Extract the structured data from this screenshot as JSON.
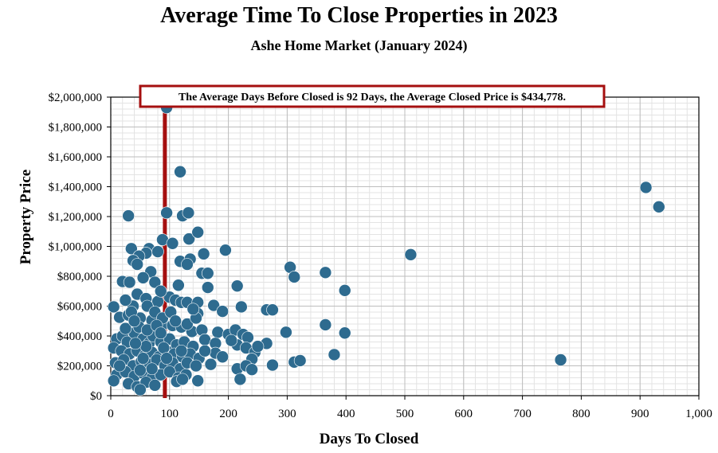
{
  "chart_data": {
    "type": "scatter",
    "title": "Average Time To Close Properties in 2023",
    "subtitle": "Ashe Home Market (January 2024)",
    "xlabel": "Days To Closed",
    "ylabel": "Property Price",
    "xlim": [
      0,
      1000
    ],
    "ylim": [
      0,
      2000000
    ],
    "x_ticks": [
      "0",
      "100",
      "200",
      "300",
      "400",
      "500",
      "600",
      "700",
      "800",
      "900",
      "1,000"
    ],
    "y_ticks": [
      "$0",
      "$200,000",
      "$400,000",
      "$600,000",
      "$800,000",
      "$1,000,000",
      "$1,200,000",
      "$1,400,000",
      "$1,600,000",
      "$1,800,000",
      "$2,000,000"
    ],
    "grid": true,
    "marker_color": "#2e6b8f",
    "average_line": {
      "x": 92,
      "color": "#a50f0f"
    },
    "annotation": "The Average Days Before Closed is 92 Days, the Average Closed Price is $434,778.",
    "points": [
      [
        95,
        1930000
      ],
      [
        118,
        1500000
      ],
      [
        910,
        1395000
      ],
      [
        932,
        1265000
      ],
      [
        30,
        1205000
      ],
      [
        95,
        1225000
      ],
      [
        122,
        1205000
      ],
      [
        132,
        1225000
      ],
      [
        88,
        1045000
      ],
      [
        105,
        1020000
      ],
      [
        133,
        1050000
      ],
      [
        148,
        1095000
      ],
      [
        195,
        975000
      ],
      [
        35,
        985000
      ],
      [
        65,
        985000
      ],
      [
        80,
        965000
      ],
      [
        60,
        955000
      ],
      [
        48,
        935000
      ],
      [
        38,
        905000
      ],
      [
        45,
        880000
      ],
      [
        118,
        900000
      ],
      [
        135,
        915000
      ],
      [
        158,
        950000
      ],
      [
        130,
        880000
      ],
      [
        155,
        820000
      ],
      [
        165,
        820000
      ],
      [
        305,
        860000
      ],
      [
        312,
        795000
      ],
      [
        365,
        825000
      ],
      [
        510,
        945000
      ],
      [
        20,
        765000
      ],
      [
        32,
        760000
      ],
      [
        68,
        830000
      ],
      [
        55,
        790000
      ],
      [
        75,
        760000
      ],
      [
        115,
        740000
      ],
      [
        165,
        725000
      ],
      [
        215,
        735000
      ],
      [
        398,
        705000
      ],
      [
        5,
        595000
      ],
      [
        38,
        600000
      ],
      [
        25,
        640000
      ],
      [
        45,
        680000
      ],
      [
        60,
        650000
      ],
      [
        80,
        630000
      ],
      [
        100,
        660000
      ],
      [
        110,
        640000
      ],
      [
        120,
        625000
      ],
      [
        130,
        625000
      ],
      [
        148,
        625000
      ],
      [
        175,
        605000
      ],
      [
        190,
        565000
      ],
      [
        222,
        595000
      ],
      [
        265,
        575000
      ],
      [
        275,
        575000
      ],
      [
        148,
        550000
      ],
      [
        15,
        525000
      ],
      [
        30,
        540000
      ],
      [
        50,
        520000
      ],
      [
        70,
        505000
      ],
      [
        90,
        480000
      ],
      [
        105,
        470000
      ],
      [
        120,
        460000
      ],
      [
        138,
        430000
      ],
      [
        155,
        440000
      ],
      [
        182,
        425000
      ],
      [
        200,
        410000
      ],
      [
        212,
        440000
      ],
      [
        225,
        410000
      ],
      [
        233,
        390000
      ],
      [
        298,
        425000
      ],
      [
        365,
        475000
      ],
      [
        398,
        420000
      ],
      [
        10,
        380000
      ],
      [
        20,
        400000
      ],
      [
        28,
        360000
      ],
      [
        40,
        420000
      ],
      [
        55,
        380000
      ],
      [
        65,
        350000
      ],
      [
        72,
        400000
      ],
      [
        85,
        360000
      ],
      [
        100,
        380000
      ],
      [
        112,
        340000
      ],
      [
        125,
        360000
      ],
      [
        140,
        330000
      ],
      [
        160,
        375000
      ],
      [
        178,
        350000
      ],
      [
        215,
        340000
      ],
      [
        230,
        320000
      ],
      [
        265,
        350000
      ],
      [
        5,
        320000
      ],
      [
        18,
        300000
      ],
      [
        32,
        280000
      ],
      [
        45,
        300000
      ],
      [
        58,
        270000
      ],
      [
        70,
        290000
      ],
      [
        82,
        260000
      ],
      [
        95,
        300000
      ],
      [
        108,
        280000
      ],
      [
        122,
        260000
      ],
      [
        135,
        280000
      ],
      [
        150,
        250000
      ],
      [
        178,
        285000
      ],
      [
        190,
        260000
      ],
      [
        245,
        290000
      ],
      [
        240,
        245000
      ],
      [
        380,
        275000
      ],
      [
        8,
        220000
      ],
      [
        22,
        240000
      ],
      [
        38,
        200000
      ],
      [
        52,
        230000
      ],
      [
        66,
        210000
      ],
      [
        78,
        240000
      ],
      [
        92,
        200000
      ],
      [
        105,
        220000
      ],
      [
        118,
        180000
      ],
      [
        130,
        220000
      ],
      [
        145,
        200000
      ],
      [
        170,
        210000
      ],
      [
        215,
        180000
      ],
      [
        230,
        200000
      ],
      [
        240,
        175000
      ],
      [
        275,
        205000
      ],
      [
        312,
        225000
      ],
      [
        322,
        235000
      ],
      [
        765,
        240000
      ],
      [
        10,
        140000
      ],
      [
        25,
        160000
      ],
      [
        40,
        130000
      ],
      [
        55,
        150000
      ],
      [
        70,
        120000
      ],
      [
        85,
        140000
      ],
      [
        100,
        160000
      ],
      [
        115,
        120000
      ],
      [
        128,
        140000
      ],
      [
        5,
        100000
      ],
      [
        30,
        80000
      ],
      [
        45,
        60000
      ],
      [
        60,
        90000
      ],
      [
        75,
        70000
      ],
      [
        112,
        95000
      ],
      [
        122,
        110000
      ],
      [
        148,
        100000
      ],
      [
        220,
        110000
      ],
      [
        50,
        40000
      ],
      [
        35,
        560000
      ],
      [
        62,
        600000
      ],
      [
        75,
        560000
      ],
      [
        88,
        520000
      ],
      [
        102,
        560000
      ],
      [
        48,
        460000
      ],
      [
        62,
        440000
      ],
      [
        78,
        470000
      ],
      [
        25,
        450000
      ],
      [
        110,
        500000
      ],
      [
        40,
        500000
      ],
      [
        85,
        420000
      ],
      [
        130,
        480000
      ],
      [
        145,
        520000
      ],
      [
        60,
        330000
      ],
      [
        90,
        320000
      ],
      [
        120,
        300000
      ],
      [
        42,
        350000
      ],
      [
        70,
        180000
      ],
      [
        95,
        250000
      ],
      [
        15,
        200000
      ],
      [
        50,
        170000
      ],
      [
        160,
        300000
      ],
      [
        205,
        370000
      ],
      [
        250,
        330000
      ],
      [
        85,
        700000
      ],
      [
        140,
        580000
      ],
      [
        55,
        250000
      ]
    ]
  }
}
